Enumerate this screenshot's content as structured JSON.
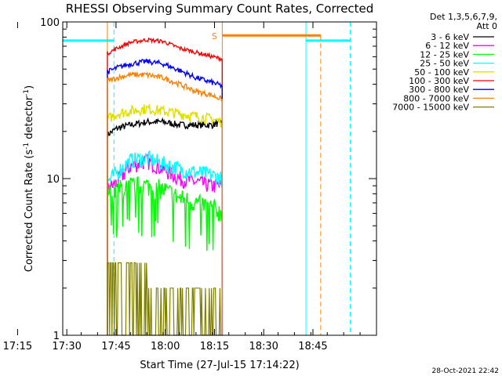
{
  "chart_data": {
    "type": "line",
    "title": "RHESSI Observing Summary Count Rates, Corrected",
    "ylabel_main": "Corrected Count Rate (s",
    "ylabel_sup1": "-1",
    "ylabel_mid": " detector",
    "ylabel_sup2": "-1",
    "ylabel_end": ")",
    "xlabel": "Start Time (27-Jul-15 17:14:22)",
    "x_ticks": [
      "17:15",
      "17:30",
      "17:45",
      "18:00",
      "18:15",
      "18:30",
      "18:45"
    ],
    "x_range_min": [
      14.4,
      110
    ],
    "y_scale": "log",
    "y_range": [
      1,
      100
    ],
    "y_ticks": [
      "1",
      "10",
      "100"
    ],
    "grid": false,
    "legend_position": "right",
    "legend_header": [
      "Det 1,3,5,6,7,9,",
      "Att 0"
    ],
    "data_window_min": [
      28,
      63
    ],
    "series": [
      {
        "name": "3 - 6 keV",
        "color": "#000000",
        "x": [
          28,
          31,
          35,
          40,
          45,
          50,
          55,
          60,
          63
        ],
        "y": [
          19,
          21,
          22,
          23,
          23,
          22,
          22,
          22,
          23
        ]
      },
      {
        "name": "6 - 12 keV",
        "color": "#ff00ff",
        "x": [
          28,
          31,
          35,
          40,
          45,
          50,
          55,
          60,
          63
        ],
        "y": [
          8.5,
          9.5,
          12,
          13,
          11.5,
          10,
          9.5,
          9,
          9
        ]
      },
      {
        "name": "12 - 25 keV",
        "color": "#00ff00",
        "x": [
          28,
          31,
          35,
          40,
          45,
          50,
          55,
          60,
          63
        ],
        "y": [
          8,
          8.5,
          9,
          9,
          8.5,
          7.5,
          7,
          6.5,
          6
        ]
      },
      {
        "name": "25 - 50 keV",
        "color": "#00ffff",
        "x": [
          28,
          31,
          35,
          40,
          45,
          50,
          55,
          60,
          63
        ],
        "y": [
          9.5,
          11,
          13,
          13.5,
          12.5,
          11.5,
          11,
          10.5,
          10
        ]
      },
      {
        "name": "50 - 100 keV",
        "color": "#e0e000",
        "x": [
          28,
          31,
          35,
          40,
          45,
          50,
          55,
          60,
          63
        ],
        "y": [
          24,
          26,
          27,
          28,
          27,
          26,
          25,
          24,
          23
        ]
      },
      {
        "name": "100 - 300 keV",
        "color": "#ff0000",
        "x": [
          28,
          31,
          35,
          40,
          45,
          50,
          55,
          60,
          63
        ],
        "y": [
          63,
          68,
          74,
          77,
          75,
          68,
          64,
          60,
          58
        ]
      },
      {
        "name": "300 - 800 keV",
        "color": "#0000ff",
        "x": [
          28,
          31,
          35,
          40,
          45,
          50,
          55,
          60,
          63
        ],
        "y": [
          48,
          51,
          54,
          56,
          54,
          49,
          44,
          41,
          39
        ]
      },
      {
        "name": "800 - 7000 keV",
        "color": "#ff8000",
        "x": [
          28,
          31,
          35,
          40,
          45,
          50,
          55,
          60,
          63
        ],
        "y": [
          42,
          44,
          46,
          46,
          44,
          40,
          36,
          34,
          32
        ]
      },
      {
        "name": "7000 - 15000 keV",
        "color": "#808000",
        "x": [
          28,
          31,
          35,
          40,
          45,
          50,
          55,
          60,
          63
        ],
        "y": [
          2,
          2.5,
          2.5,
          2.2,
          2.4,
          1.6,
          1.6,
          1.6,
          1.6
        ]
      }
    ],
    "annotations": {
      "saa_label": "S",
      "saa_band_min": [
        63,
        93
      ],
      "saa_level_y": 82,
      "night_level_y": 76,
      "night_bars_min": [
        [
          14.4,
          30
        ],
        [
          88.5,
          102
        ]
      ],
      "cyan_solid_min": [
        14.4,
        88.5
      ],
      "cyan_dashed_min": [
        30,
        102
      ],
      "orange_solid_min": [
        28,
        63
      ],
      "orange_dashed_min": [
        93
      ]
    },
    "timestamp": "28-Oct-2021 22:42"
  }
}
